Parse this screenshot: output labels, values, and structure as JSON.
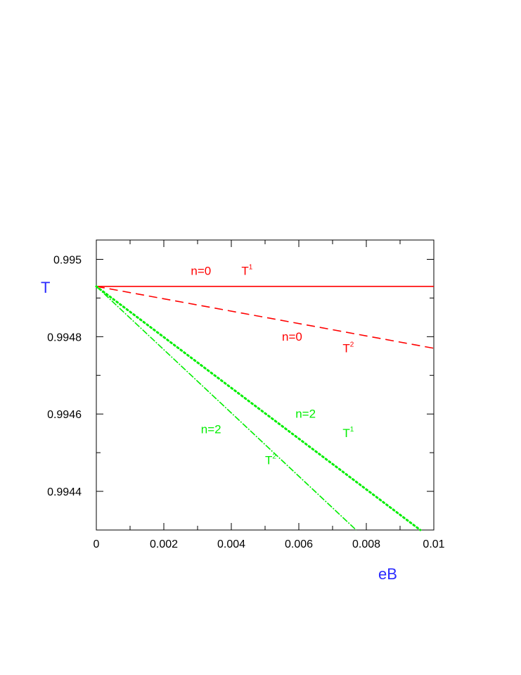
{
  "chart_data": {
    "type": "line",
    "title": "",
    "xlabel": "eB",
    "ylabel": "T",
    "xlim": [
      0,
      0.01
    ],
    "ylim": [
      0.9943,
      0.99505
    ],
    "grid": false,
    "legend": "none",
    "x_ticks": [
      {
        "value": 0,
        "label": "0"
      },
      {
        "value": 0.002,
        "label": "0.002"
      },
      {
        "value": 0.004,
        "label": "0.004"
      },
      {
        "value": 0.006,
        "label": "0.006"
      },
      {
        "value": 0.008,
        "label": "0.008"
      },
      {
        "value": 0.01,
        "label": "0.01"
      }
    ],
    "y_ticks": [
      {
        "value": 0.995,
        "label": "0.995"
      },
      {
        "value": 0.9948,
        "label": "0.9948"
      },
      {
        "value": 0.9946,
        "label": "0.9946"
      },
      {
        "value": 0.9944,
        "label": "0.9944"
      }
    ],
    "series": [
      {
        "id": "n0-T1",
        "color": "#ff0000",
        "style": "solid",
        "x": [
          0,
          0.01
        ],
        "y": [
          0.99493,
          0.99493
        ]
      },
      {
        "id": "n0-T2",
        "color": "#ff0000",
        "style": "dashed",
        "x": [
          0,
          0.01
        ],
        "y": [
          0.99493,
          0.99477
        ]
      },
      {
        "id": "n2-T1",
        "color": "#00ee00",
        "style": "dotted",
        "x": [
          0,
          0.0096
        ],
        "y": [
          0.99493,
          0.9943
        ]
      },
      {
        "id": "n2-T2",
        "color": "#00ee00",
        "style": "dashdot",
        "x": [
          0,
          0.0077
        ],
        "y": [
          0.99493,
          0.9943
        ]
      }
    ],
    "annotations": [
      {
        "id": "n0-label-1",
        "text": "n=0",
        "sup": "",
        "color": "#ff0000",
        "x": 0.0028,
        "y": 0.99496
      },
      {
        "id": "T1-label-red",
        "text": "T",
        "sup": "1",
        "color": "#ff0000",
        "x": 0.0043,
        "y": 0.99496
      },
      {
        "id": "n0-label-2",
        "text": "n=0",
        "sup": "",
        "color": "#ff0000",
        "x": 0.0055,
        "y": 0.99479
      },
      {
        "id": "T2-label-red",
        "text": "T",
        "sup": "2",
        "color": "#ff0000",
        "x": 0.0073,
        "y": 0.99476
      },
      {
        "id": "n2-label-1",
        "text": "n=2",
        "sup": "",
        "color": "#00ee00",
        "x": 0.0059,
        "y": 0.99459
      },
      {
        "id": "T1-label-green",
        "text": "T",
        "sup": "1",
        "color": "#00ee00",
        "x": 0.0073,
        "y": 0.99454
      },
      {
        "id": "n2-label-2",
        "text": "n=2",
        "sup": "",
        "color": "#00ee00",
        "x": 0.0031,
        "y": 0.99455
      },
      {
        "id": "T2-label-green",
        "text": "T",
        "sup": "2",
        "color": "#00ee00",
        "x": 0.005,
        "y": 0.99447
      }
    ],
    "axis_title_color": "#2a2aff"
  }
}
